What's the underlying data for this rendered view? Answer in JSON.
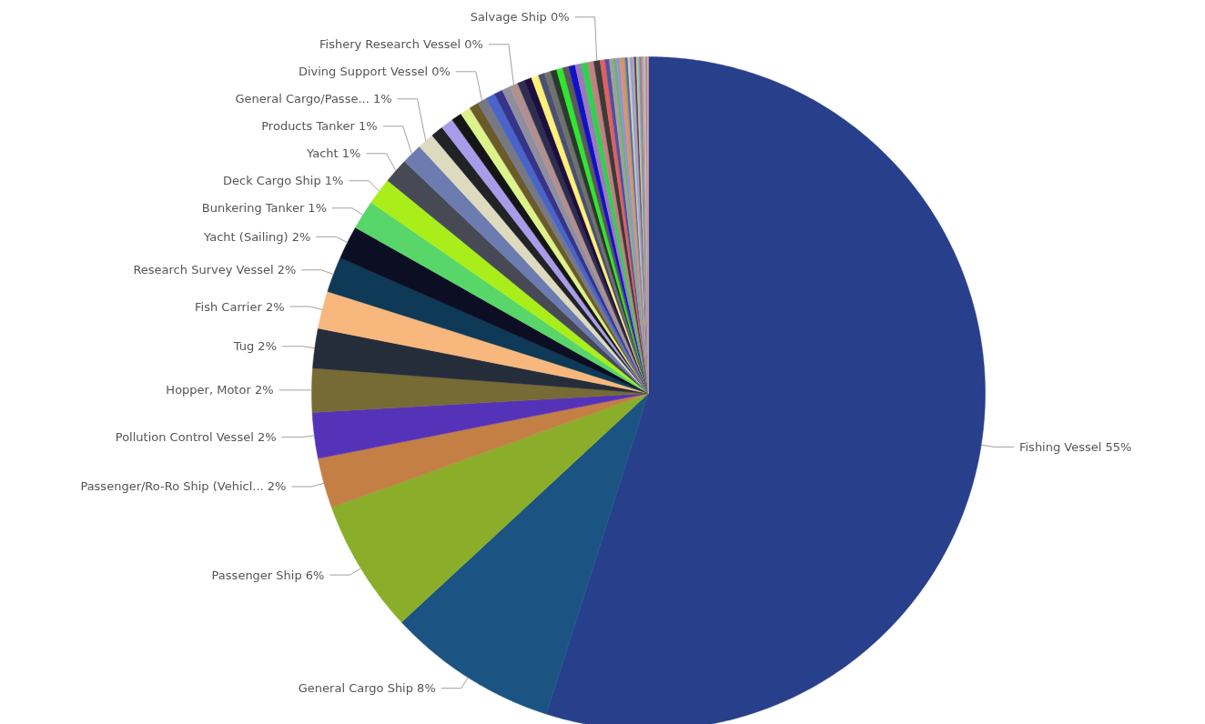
{
  "chart_data": {
    "type": "pie",
    "categories": [
      "Fishing Vessel",
      "General Cargo Ship",
      "Passenger Ship",
      "Passenger/Ro-Ro Ship (Vehicl...",
      "Pollution Control Vessel",
      "Hopper, Motor",
      "Tug",
      "Fish Carrier",
      "Research Survey Vessel",
      "Yacht (Sailing)",
      "Bunkering Tanker",
      "Deck Cargo Ship",
      "Yacht",
      "Products Tanker",
      "General Cargo/Passe...",
      null,
      null,
      null,
      null,
      null,
      "Diving Support Vessel",
      null,
      null,
      null,
      "Fishery Research Vessel",
      null,
      null,
      null,
      null,
      null,
      null,
      null,
      null,
      null,
      null,
      null,
      null,
      "Salvage Ship",
      null,
      null,
      null,
      null,
      null,
      null,
      null,
      null,
      null,
      null,
      null,
      null,
      null,
      null,
      null,
      null,
      null,
      null,
      null,
      null
    ],
    "values": [
      54.9,
      8.2,
      6.4,
      2.4,
      2.2,
      2.1,
      1.9,
      1.8,
      1.7,
      1.6,
      1.4,
      1.3,
      1.2,
      1.0,
      0.8,
      0.6,
      0.6,
      0.5,
      0.5,
      0.45,
      0.45,
      0.45,
      0.4,
      0.4,
      0.4,
      0.35,
      0.35,
      0.35,
      0.3,
      0.3,
      0.3,
      0.3,
      0.3,
      0.3,
      0.3,
      0.3,
      0.3,
      0.3,
      0.24,
      0.2,
      0.18,
      0.16,
      0.15,
      0.14,
      0.13,
      0.12,
      0.11,
      0.1,
      0.1,
      0.09,
      0.08,
      0.08,
      0.08,
      0.07,
      0.07,
      0.07,
      0.07,
      0.06
    ],
    "colors": [
      "#283f8c",
      "#1b5482",
      "#8aae2a",
      "#c47f45",
      "#5533b8",
      "#766a35",
      "#262d3a",
      "#f8b77d",
      "#0e3a57",
      "#0c0e24",
      "#58d66a",
      "#a9ee1b",
      "#474a55",
      "#6c7bb0",
      "#dddac0",
      "#222327",
      "#a89ce8",
      "#151515",
      "#ddf28a",
      "#6b5a2a",
      "#767882",
      "#4a64c8",
      "#35338a",
      "#8e8e9e",
      "#b09090",
      "#2e2e4e",
      "#1e0e3e",
      "#fff07a",
      "#4a5070",
      "#707070",
      "#2a3a2a",
      "#2ee82e",
      "#5a5a5a",
      "#1010c8",
      "#9a7ab8",
      "#30d050",
      "#c08080",
      "#3a3a3a",
      "#e06060",
      "#5050a0",
      "#a0a0a0",
      "#70b070",
      "#9090e0",
      "#e09070",
      "#b0a060",
      "#6060c0",
      "#d0d0a0",
      "#80a0e0",
      "#c0a0a0",
      "#404080",
      "#e0c080",
      "#70c0c0",
      "#a070a0",
      "#d09060",
      "#90b0d0",
      "#c0c0c0",
      "#b08080",
      "#e0a0a0"
    ],
    "value_labels": [
      "55%",
      "8%",
      "6%",
      "2%",
      "2%",
      "2%",
      "2%",
      "2%",
      "2%",
      "2%",
      "1%",
      "1%",
      "1%",
      "1%",
      "1%",
      null,
      null,
      null,
      null,
      null,
      "0%",
      null,
      null,
      null,
      "0%",
      null,
      null,
      null,
      null,
      null,
      null,
      null,
      null,
      null,
      null,
      null,
      null,
      "0%",
      null,
      null,
      null,
      null,
      null,
      null,
      null,
      null,
      null,
      null,
      null,
      null,
      null,
      null,
      null,
      null,
      null,
      null,
      null,
      null
    ]
  }
}
